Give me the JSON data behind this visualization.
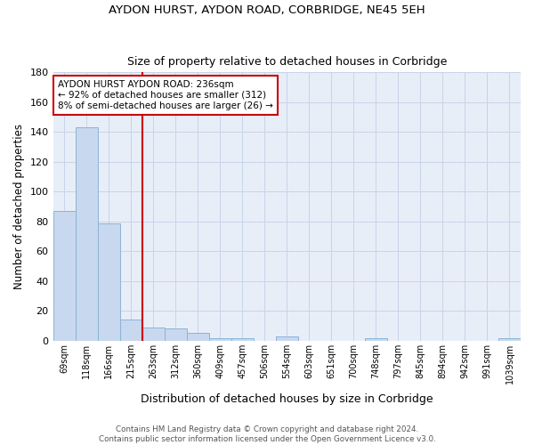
{
  "title1": "AYDON HURST, AYDON ROAD, CORBRIDGE, NE45 5EH",
  "title2": "Size of property relative to detached houses in Corbridge",
  "xlabel": "Distribution of detached houses by size in Corbridge",
  "ylabel": "Number of detached properties",
  "bin_labels": [
    "69sqm",
    "118sqm",
    "166sqm",
    "215sqm",
    "263sqm",
    "312sqm",
    "360sqm",
    "409sqm",
    "457sqm",
    "506sqm",
    "554sqm",
    "603sqm",
    "651sqm",
    "700sqm",
    "748sqm",
    "797sqm",
    "845sqm",
    "894sqm",
    "942sqm",
    "991sqm",
    "1039sqm"
  ],
  "bar_heights": [
    87,
    143,
    79,
    14,
    9,
    8,
    5,
    2,
    2,
    0,
    3,
    0,
    0,
    0,
    2,
    0,
    0,
    0,
    0,
    0,
    2
  ],
  "bar_color": "#c8d8ee",
  "bar_edge_color": "#8ab4d8",
  "grid_color": "#c8d4e8",
  "bg_color": "#e8eef8",
  "property_line_x": 3.5,
  "property_line_color": "#cc0000",
  "annotation_text": "AYDON HURST AYDON ROAD: 236sqm\n← 92% of detached houses are smaller (312)\n8% of semi-detached houses are larger (26) →",
  "annotation_box_color": "#ffffff",
  "annotation_box_edge": "#cc0000",
  "ylim": [
    0,
    180
  ],
  "yticks": [
    0,
    20,
    40,
    60,
    80,
    100,
    120,
    140,
    160,
    180
  ],
  "footer1": "Contains HM Land Registry data © Crown copyright and database right 2024.",
  "footer2": "Contains public sector information licensed under the Open Government Licence v3.0."
}
